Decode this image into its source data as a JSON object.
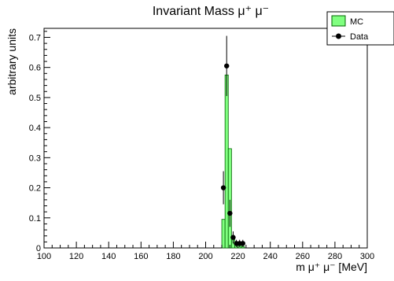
{
  "chart_data": {
    "type": "histogram",
    "title": "Invariant Mass μ⁺ μ⁻",
    "xlabel": "m μ⁺ μ⁻ [MeV]",
    "ylabel": "arbitrary units",
    "xlim": [
      100,
      300
    ],
    "ylim": [
      0,
      0.73
    ],
    "x_ticks": [
      100,
      120,
      140,
      160,
      180,
      200,
      220,
      240,
      260,
      280,
      300
    ],
    "x_tick_labels": [
      "100",
      "120",
      "140",
      "160",
      "180",
      "200",
      "220",
      "240",
      "260",
      "280",
      "300"
    ],
    "y_ticks": [
      0,
      0.1,
      0.2,
      0.3,
      0.4,
      0.5,
      0.6,
      0.7
    ],
    "y_tick_labels": [
      "0",
      "0.1",
      "0.2",
      "0.3",
      "0.4",
      "0.5",
      "0.6",
      "0.7"
    ],
    "legend": {
      "placement": "top-right",
      "entries": [
        {
          "label": "MC",
          "marker": "filled-box",
          "color": "#80ff80"
        },
        {
          "label": "Data",
          "marker": "dot-with-error",
          "color": "#000000"
        }
      ]
    },
    "series": [
      {
        "name": "MC",
        "style": "step-filled",
        "fill": "#80ff80",
        "edge": "#006400",
        "bin_width": 2,
        "bins": [
          {
            "x0": 210,
            "value": 0.095
          },
          {
            "x0": 212,
            "value": 0.575
          },
          {
            "x0": 214,
            "value": 0.33
          },
          {
            "x0": 216,
            "value": 0.03
          },
          {
            "x0": 218,
            "value": 0.01
          },
          {
            "x0": 220,
            "value": 0.01
          },
          {
            "x0": 222,
            "value": 0.005
          }
        ]
      },
      {
        "name": "Data",
        "style": "points",
        "color": "#000000",
        "points": [
          {
            "x": 211,
            "y": 0.2,
            "err": 0.055
          },
          {
            "x": 213,
            "y": 0.605,
            "err": 0.1
          },
          {
            "x": 215,
            "y": 0.115,
            "err": 0.045
          },
          {
            "x": 217,
            "y": 0.035,
            "err": 0.02
          },
          {
            "x": 219,
            "y": 0.015,
            "err": 0.012
          },
          {
            "x": 221,
            "y": 0.015,
            "err": 0.012
          },
          {
            "x": 223,
            "y": 0.015,
            "err": 0.012
          }
        ]
      }
    ]
  }
}
